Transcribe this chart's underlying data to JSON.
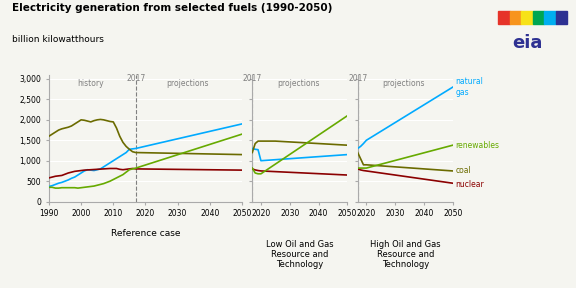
{
  "title": "Electricity generation from selected fuels (1990-2050)",
  "subtitle": "billion kilowatthours",
  "colors": {
    "natural_gas": "#00aaff",
    "coal": "#6b6b00",
    "renewables": "#66aa00",
    "nuclear": "#8b0000"
  },
  "bg_color": "#f5f5f0",
  "yticks": [
    0,
    500,
    1000,
    1500,
    2000,
    2500,
    3000
  ],
  "ymax": 3100
}
